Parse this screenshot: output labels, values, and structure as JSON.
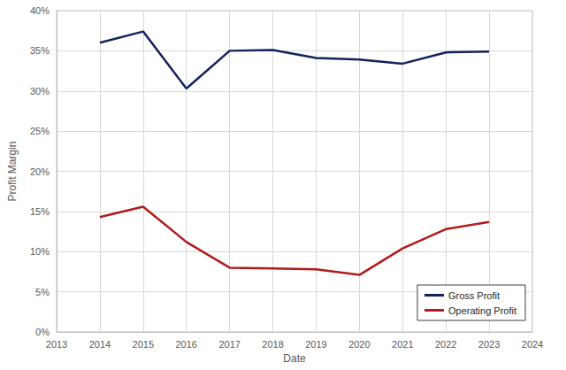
{
  "chart_data": {
    "type": "line",
    "x_label": "Date",
    "y_label": "Profit Margin",
    "x": [
      2014,
      2015,
      2016,
      2017,
      2018,
      2019,
      2020,
      2021,
      2022,
      2023
    ],
    "series": [
      {
        "name": "Gross Profit",
        "color": "#13235b",
        "values": [
          36.0,
          37.4,
          30.3,
          35.0,
          35.1,
          34.1,
          33.9,
          33.4,
          34.8,
          34.9
        ]
      },
      {
        "name": "Operating Profit",
        "color": "#b01c1c",
        "values": [
          14.3,
          15.6,
          11.2,
          8.0,
          7.9,
          7.8,
          7.1,
          10.4,
          12.8,
          13.7
        ]
      }
    ],
    "xlim": [
      2013,
      2024
    ],
    "xticks": [
      2013,
      2014,
      2015,
      2016,
      2017,
      2018,
      2019,
      2020,
      2021,
      2022,
      2023,
      2024
    ],
    "ylim": [
      0,
      40
    ],
    "yticks": [
      {
        "value": 0,
        "label": "0%"
      },
      {
        "value": 5,
        "label": "5%"
      },
      {
        "value": 10,
        "label": "10%"
      },
      {
        "value": 15,
        "label": "15%"
      },
      {
        "value": 20,
        "label": "20%"
      },
      {
        "value": 25,
        "label": "25%"
      },
      {
        "value": 30,
        "label": "30%"
      },
      {
        "value": 35,
        "label": "35%"
      },
      {
        "value": 40,
        "label": "40%"
      }
    ],
    "grid": true,
    "legend": "lower right"
  }
}
